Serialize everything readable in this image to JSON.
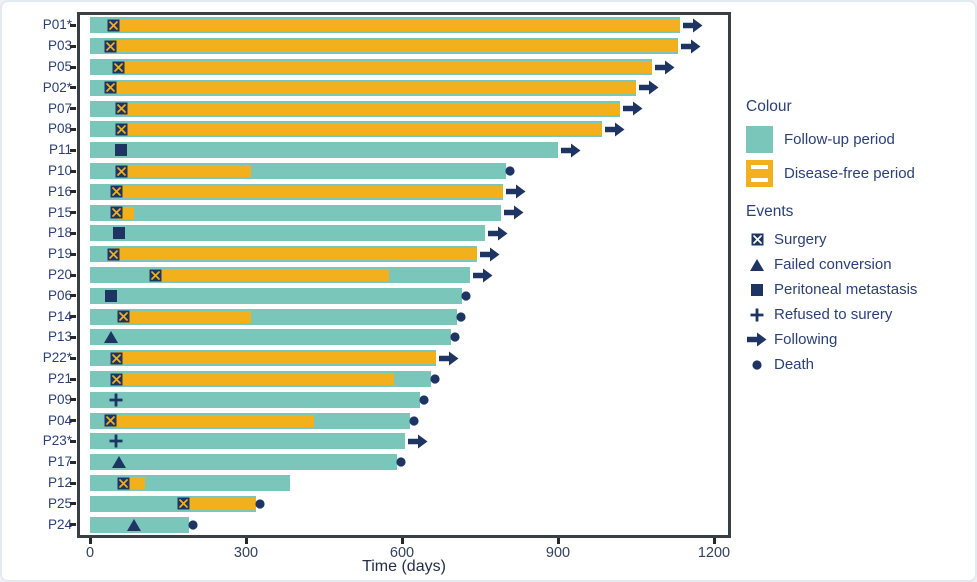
{
  "colors": {
    "follow_up": "#7ac6bb",
    "disease_free": "#f2b11c",
    "marker_navy": "#1e3564",
    "text_navy": "#2b4076",
    "axis_text": "#33415e",
    "plot_border": "#3a3f44"
  },
  "legend": {
    "colour_title": "Colour",
    "colour_items": [
      {
        "key": "follow_up",
        "label": "Follow-up period"
      },
      {
        "key": "disease_free",
        "label": "Disease-free period"
      }
    ],
    "events_title": "Events",
    "event_items": [
      {
        "icon": "surgery",
        "label": "Surgery"
      },
      {
        "icon": "failed_conversion",
        "label": "Failed conversion"
      },
      {
        "icon": "peritoneal_metastasis",
        "label": "Peritoneal metastasis"
      },
      {
        "icon": "refused_surgery",
        "label": "Refused to surery"
      },
      {
        "icon": "following",
        "label": "Following"
      },
      {
        "icon": "death",
        "label": "Death"
      }
    ]
  },
  "chart_data": {
    "type": "bar",
    "variant": "swimmer",
    "title": "",
    "xlabel": "Time (days)",
    "ylabel": "",
    "xlim": [
      0,
      1200
    ],
    "x_ticks": [
      0,
      300,
      600,
      900,
      1200
    ],
    "legend_position": "right",
    "rows": [
      {
        "label": "P01*",
        "follow_up_end": 1135,
        "disease_free": [
          45,
          1135
        ],
        "events": [
          {
            "type": "surgery",
            "day": 45
          }
        ],
        "end_marker": "following"
      },
      {
        "label": "P03",
        "follow_up_end": 1130,
        "disease_free": [
          40,
          1130
        ],
        "events": [
          {
            "type": "surgery",
            "day": 40
          }
        ],
        "end_marker": "following"
      },
      {
        "label": "P05",
        "follow_up_end": 1080,
        "disease_free": [
          55,
          1080
        ],
        "events": [
          {
            "type": "surgery",
            "day": 55
          }
        ],
        "end_marker": "following"
      },
      {
        "label": "P02*",
        "follow_up_end": 1050,
        "disease_free": [
          40,
          1050
        ],
        "events": [
          {
            "type": "surgery",
            "day": 40
          }
        ],
        "end_marker": "following"
      },
      {
        "label": "P07",
        "follow_up_end": 1020,
        "disease_free": [
          60,
          1020
        ],
        "events": [
          {
            "type": "surgery",
            "day": 60
          }
        ],
        "end_marker": "following"
      },
      {
        "label": "P08",
        "follow_up_end": 985,
        "disease_free": [
          60,
          985
        ],
        "events": [
          {
            "type": "surgery",
            "day": 60
          }
        ],
        "end_marker": "following"
      },
      {
        "label": "P11",
        "follow_up_end": 900,
        "disease_free": null,
        "events": [
          {
            "type": "peritoneal_metastasis",
            "day": 60
          }
        ],
        "end_marker": "following"
      },
      {
        "label": "P10",
        "follow_up_end": 800,
        "disease_free": [
          60,
          310
        ],
        "events": [
          {
            "type": "surgery",
            "day": 60
          }
        ],
        "end_marker": "death"
      },
      {
        "label": "P16",
        "follow_up_end": 795,
        "disease_free": [
          50,
          795
        ],
        "events": [
          {
            "type": "surgery",
            "day": 50
          }
        ],
        "end_marker": "following"
      },
      {
        "label": "P15",
        "follow_up_end": 790,
        "disease_free": [
          50,
          85
        ],
        "events": [
          {
            "type": "surgery",
            "day": 50
          }
        ],
        "end_marker": "following"
      },
      {
        "label": "P18",
        "follow_up_end": 760,
        "disease_free": null,
        "events": [
          {
            "type": "peritoneal_metastasis",
            "day": 55
          }
        ],
        "end_marker": "following"
      },
      {
        "label": "P19",
        "follow_up_end": 745,
        "disease_free": [
          45,
          745
        ],
        "events": [
          {
            "type": "surgery",
            "day": 45
          }
        ],
        "end_marker": "following"
      },
      {
        "label": "P20",
        "follow_up_end": 730,
        "disease_free": [
          125,
          575
        ],
        "events": [
          {
            "type": "surgery",
            "day": 125
          }
        ],
        "end_marker": "following"
      },
      {
        "label": "P06",
        "follow_up_end": 715,
        "disease_free": null,
        "events": [
          {
            "type": "peritoneal_metastasis",
            "day": 40
          }
        ],
        "end_marker": "death"
      },
      {
        "label": "P14",
        "follow_up_end": 705,
        "disease_free": [
          65,
          310
        ],
        "events": [
          {
            "type": "surgery",
            "day": 65
          }
        ],
        "end_marker": "death"
      },
      {
        "label": "P13",
        "follow_up_end": 695,
        "disease_free": null,
        "events": [
          {
            "type": "failed_conversion",
            "day": 40
          }
        ],
        "end_marker": "death"
      },
      {
        "label": "P22*",
        "follow_up_end": 665,
        "disease_free": [
          50,
          665
        ],
        "events": [
          {
            "type": "surgery",
            "day": 50
          }
        ],
        "end_marker": "following"
      },
      {
        "label": "P21",
        "follow_up_end": 655,
        "disease_free": [
          50,
          585
        ],
        "events": [
          {
            "type": "surgery",
            "day": 50
          }
        ],
        "end_marker": "death"
      },
      {
        "label": "P09",
        "follow_up_end": 635,
        "disease_free": null,
        "events": [
          {
            "type": "refused_surgery",
            "day": 50
          }
        ],
        "end_marker": "death"
      },
      {
        "label": "P04",
        "follow_up_end": 615,
        "disease_free": [
          40,
          430
        ],
        "events": [
          {
            "type": "surgery",
            "day": 40
          }
        ],
        "end_marker": "death"
      },
      {
        "label": "P23*",
        "follow_up_end": 605,
        "disease_free": null,
        "events": [
          {
            "type": "refused_surgery",
            "day": 50
          }
        ],
        "end_marker": "following"
      },
      {
        "label": "P17",
        "follow_up_end": 590,
        "disease_free": null,
        "events": [
          {
            "type": "failed_conversion",
            "day": 55
          }
        ],
        "end_marker": "death"
      },
      {
        "label": "P12",
        "follow_up_end": 385,
        "disease_free": [
          65,
          105
        ],
        "events": [
          {
            "type": "surgery",
            "day": 65
          }
        ],
        "end_marker": "none"
      },
      {
        "label": "P25",
        "follow_up_end": 320,
        "disease_free": [
          180,
          320
        ],
        "events": [
          {
            "type": "surgery",
            "day": 180
          }
        ],
        "end_marker": "death"
      },
      {
        "label": "P24",
        "follow_up_end": 190,
        "disease_free": null,
        "events": [
          {
            "type": "failed_conversion",
            "day": 85
          }
        ],
        "end_marker": "death"
      }
    ]
  }
}
